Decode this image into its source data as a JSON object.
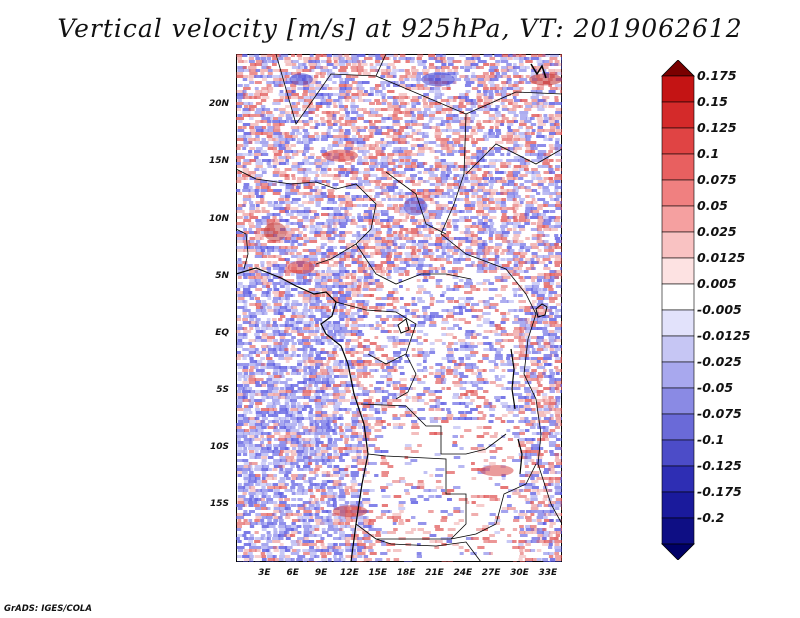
{
  "title": "Vertical velocity [m/s] at 925hPa, VT: 2019062612",
  "credit": "GrADS: IGES/COLA",
  "map": {
    "lat_labels": [
      "20N",
      "15N",
      "10N",
      "5N",
      "EQ",
      "5S",
      "10S",
      "15S"
    ],
    "lat_values": [
      20,
      15,
      10,
      5,
      0,
      -5,
      -10,
      -15
    ],
    "lon_labels": [
      "3E",
      "6E",
      "9E",
      "12E",
      "15E",
      "18E",
      "21E",
      "24E",
      "27E",
      "30E",
      "33E"
    ],
    "lon_values": [
      3,
      6,
      9,
      12,
      15,
      18,
      21,
      24,
      27,
      30,
      33
    ],
    "lat_range": [
      -20,
      24.5
    ],
    "lon_range": [
      0,
      34.5
    ]
  },
  "colorbar": {
    "labels": [
      "0.175",
      "0.15",
      "0.125",
      "0.1",
      "0.075",
      "0.05",
      "0.025",
      "0.0125",
      "0.005",
      "-0.005",
      "-0.0125",
      "-0.025",
      "-0.05",
      "-0.075",
      "-0.1",
      "-0.125",
      "-0.175",
      "-0.2"
    ],
    "colors": [
      "#a80000",
      "#c41414",
      "#d42a2a",
      "#e04444",
      "#e86060",
      "#f08080",
      "#f5a0a0",
      "#f9c2c2",
      "#fde2e2",
      "#ffffff",
      "#e2e2fb",
      "#c6c6f4",
      "#a8a8ee",
      "#8a8ae4",
      "#6a6ad8",
      "#4c4cc8",
      "#2e2eb4",
      "#1a1a9c",
      "#0e0e84",
      "#06066c"
    ],
    "top_color": "#7a0000",
    "bottom_color": "#000066"
  },
  "colors": {
    "positive": "#e05555",
    "negative": "#5555e0"
  }
}
